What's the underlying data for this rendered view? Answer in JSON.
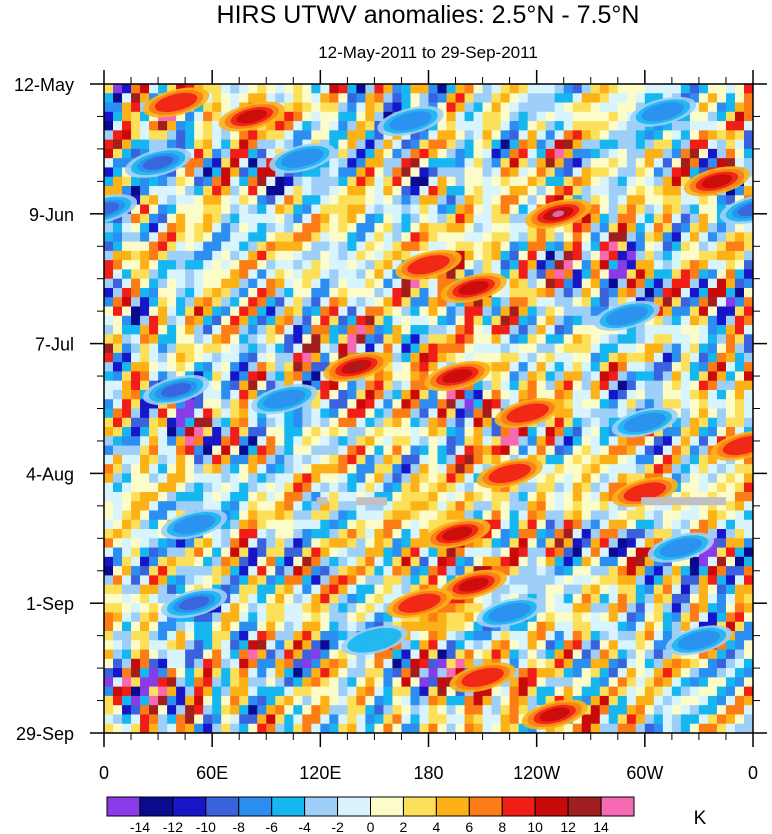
{
  "chart_data": {
    "type": "heatmap",
    "title": "HIRS UTWV anomalies: 2.5°N - 7.5°N",
    "subtitle": "12-May-2011 to 29-Sep-2011",
    "x_ticks": [
      {
        "label": "0",
        "lon": 0
      },
      {
        "label": "60E",
        "lon": 60
      },
      {
        "label": "120E",
        "lon": 120
      },
      {
        "label": "180",
        "lon": 180
      },
      {
        "label": "120W",
        "lon": 240
      },
      {
        "label": "60W",
        "lon": 300
      },
      {
        "label": "0",
        "lon": 360
      }
    ],
    "xlim": [
      0,
      360
    ],
    "y_ticks": [
      {
        "label": "12-May",
        "day": 0
      },
      {
        "label": "9-Jun",
        "day": 28
      },
      {
        "label": "7-Jul",
        "day": 56
      },
      {
        "label": "4-Aug",
        "day": 84
      },
      {
        "label": "1-Sep",
        "day": 112
      },
      {
        "label": "29-Sep",
        "day": 140
      }
    ],
    "ylim": [
      0,
      140
    ],
    "colorbar": {
      "unit": "K",
      "levels": [
        -14,
        -12,
        -10,
        -8,
        -6,
        -4,
        -2,
        0,
        2,
        4,
        6,
        8,
        10,
        12,
        14
      ],
      "colors": [
        "#8b3ae8",
        "#0a0a8c",
        "#1616c8",
        "#3a62dc",
        "#2c8ef0",
        "#16b6f0",
        "#9ecff8",
        "#d8f4fc",
        "#fcfcc8",
        "#fce05a",
        "#fcb216",
        "#fc7c16",
        "#f01e16",
        "#c80a0a",
        "#a01e1e",
        "#f66ab4"
      ]
    },
    "anomaly_features": [
      {
        "lon": 82,
        "day": 7,
        "value": 11
      },
      {
        "lon": 40,
        "day": 4,
        "value": 9
      },
      {
        "lon": 340,
        "day": 21,
        "value": 10
      },
      {
        "lon": 252,
        "day": 28,
        "value": 14
      },
      {
        "lon": 180,
        "day": 39,
        "value": 9
      },
      {
        "lon": 205,
        "day": 44,
        "value": 10
      },
      {
        "lon": 140,
        "day": 61,
        "value": 13
      },
      {
        "lon": 196,
        "day": 63,
        "value": 10
      },
      {
        "lon": 235,
        "day": 71,
        "value": 9
      },
      {
        "lon": 196,
        "day": 97,
        "value": 11
      },
      {
        "lon": 205,
        "day": 108,
        "value": 10
      },
      {
        "lon": 175,
        "day": 112,
        "value": 9
      },
      {
        "lon": 225,
        "day": 84,
        "value": 9
      },
      {
        "lon": 300,
        "day": 88,
        "value": 8
      },
      {
        "lon": 355,
        "day": 78,
        "value": 8
      },
      {
        "lon": 250,
        "day": 136,
        "value": 10
      },
      {
        "lon": 210,
        "day": 128,
        "value": 8
      },
      {
        "lon": 170,
        "day": 8,
        "value": -9
      },
      {
        "lon": 30,
        "day": 17,
        "value": -10
      },
      {
        "lon": 110,
        "day": 16,
        "value": -9
      },
      {
        "lon": 310,
        "day": 6,
        "value": -9
      },
      {
        "lon": 40,
        "day": 66,
        "value": -10
      },
      {
        "lon": 50,
        "day": 95,
        "value": -9
      },
      {
        "lon": 50,
        "day": 112,
        "value": -11
      },
      {
        "lon": 100,
        "day": 68,
        "value": -9
      },
      {
        "lon": 290,
        "day": 50,
        "value": -9
      },
      {
        "lon": 320,
        "day": 100,
        "value": -9
      },
      {
        "lon": 330,
        "day": 120,
        "value": -8
      },
      {
        "lon": 225,
        "day": 114,
        "value": -8
      },
      {
        "lon": 300,
        "day": 73,
        "value": -8
      },
      {
        "lon": 150,
        "day": 120,
        "value": -7
      },
      {
        "lon": 0,
        "day": 27,
        "value": -10
      },
      {
        "lon": 360,
        "day": 27,
        "value": -10
      }
    ],
    "missing_data": [
      {
        "lon_start": 118,
        "lon_end": 124,
        "day": 90
      },
      {
        "lon_start": 140,
        "lon_end": 157,
        "day": 90
      },
      {
        "lon_start": 298,
        "lon_end": 345,
        "day": 90
      }
    ]
  }
}
